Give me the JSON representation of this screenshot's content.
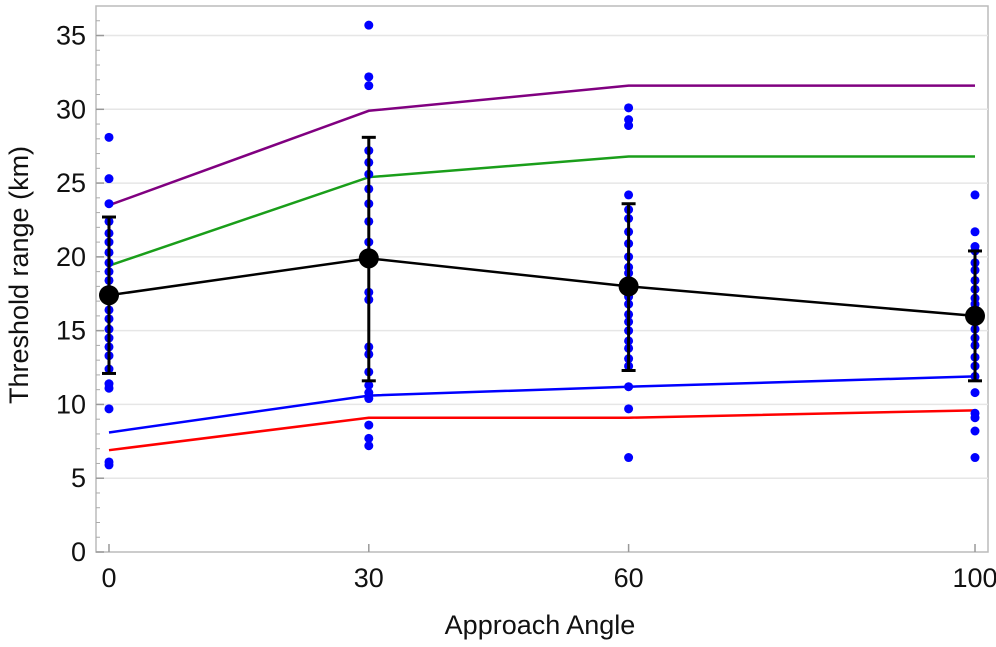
{
  "chart_data": {
    "type": "line",
    "xlabel": "Approach Angle",
    "ylabel": "Threshold range (km)",
    "x": [
      0,
      30,
      60,
      100
    ],
    "x_tick_labels": [
      "0",
      "30",
      "60",
      "100"
    ],
    "xlim": [
      -1.5,
      101.5
    ],
    "ylim": [
      0,
      37
    ],
    "y_ticks": [
      0,
      5,
      10,
      15,
      20,
      25,
      30,
      35
    ],
    "y_tick_labels": [
      "0",
      "5",
      "10",
      "15",
      "20",
      "25",
      "30",
      "35"
    ],
    "grid": "horizontal",
    "series": [
      {
        "color": "#800080",
        "values": [
          23.5,
          29.9,
          31.6,
          31.6
        ]
      },
      {
        "color": "#1a9e1a",
        "values": [
          19.4,
          25.4,
          26.8,
          26.8
        ]
      },
      {
        "color": "#0000ff",
        "values": [
          8.1,
          10.6,
          11.2,
          11.9
        ]
      },
      {
        "color": "#ff0000",
        "values": [
          6.9,
          9.1,
          9.1,
          9.6
        ]
      }
    ],
    "mean_series": {
      "color": "#000000",
      "values": [
        17.4,
        19.9,
        18.0,
        16.0
      ],
      "error_low": [
        12.1,
        11.6,
        12.3,
        11.6
      ],
      "error_high": [
        22.7,
        28.1,
        23.6,
        20.4
      ]
    },
    "scatter": {
      "color": "#0000ff",
      "points": [
        [
          0,
          28.1
        ],
        [
          0,
          25.3
        ],
        [
          0,
          23.6
        ],
        [
          0,
          22.4
        ],
        [
          0,
          21.6
        ],
        [
          0,
          21.0
        ],
        [
          0,
          20.3
        ],
        [
          0,
          19.6
        ],
        [
          0,
          19.0
        ],
        [
          0,
          18.4
        ],
        [
          0,
          17.8
        ],
        [
          0,
          17.1
        ],
        [
          0,
          16.4
        ],
        [
          0,
          15.8
        ],
        [
          0,
          15.1
        ],
        [
          0,
          14.5
        ],
        [
          0,
          13.9
        ],
        [
          0,
          13.3
        ],
        [
          0,
          12.4
        ],
        [
          0,
          11.4
        ],
        [
          0,
          11.1
        ],
        [
          0,
          9.7
        ],
        [
          0,
          6.1
        ],
        [
          0,
          5.9
        ],
        [
          30,
          35.7
        ],
        [
          30,
          32.2
        ],
        [
          30,
          31.6
        ],
        [
          30,
          27.2
        ],
        [
          30,
          26.4
        ],
        [
          30,
          25.6
        ],
        [
          30,
          24.6
        ],
        [
          30,
          23.6
        ],
        [
          30,
          22.4
        ],
        [
          30,
          21.0
        ],
        [
          30,
          20.3
        ],
        [
          30,
          19.6
        ],
        [
          30,
          17.6
        ],
        [
          30,
          17.1
        ],
        [
          30,
          13.9
        ],
        [
          30,
          13.4
        ],
        [
          30,
          12.2
        ],
        [
          30,
          11.3
        ],
        [
          30,
          10.8
        ],
        [
          30,
          10.4
        ],
        [
          30,
          8.6
        ],
        [
          30,
          7.7
        ],
        [
          30,
          7.2
        ],
        [
          60,
          30.1
        ],
        [
          60,
          29.3
        ],
        [
          60,
          28.9
        ],
        [
          60,
          24.2
        ],
        [
          60,
          23.2
        ],
        [
          60,
          22.6
        ],
        [
          60,
          21.7
        ],
        [
          60,
          20.9
        ],
        [
          60,
          20.0
        ],
        [
          60,
          19.3
        ],
        [
          60,
          18.9
        ],
        [
          60,
          18.2
        ],
        [
          60,
          17.3
        ],
        [
          60,
          16.8
        ],
        [
          60,
          16.1
        ],
        [
          60,
          15.6
        ],
        [
          60,
          15.0
        ],
        [
          60,
          14.3
        ],
        [
          60,
          13.8
        ],
        [
          60,
          13.1
        ],
        [
          60,
          12.6
        ],
        [
          60,
          11.2
        ],
        [
          60,
          9.7
        ],
        [
          60,
          6.4
        ],
        [
          100,
          24.2
        ],
        [
          100,
          21.7
        ],
        [
          100,
          20.7
        ],
        [
          100,
          20.4
        ],
        [
          100,
          19.6
        ],
        [
          100,
          19.1
        ],
        [
          100,
          18.4
        ],
        [
          100,
          17.8
        ],
        [
          100,
          17.2
        ],
        [
          100,
          16.8
        ],
        [
          100,
          16.4
        ],
        [
          100,
          15.6
        ],
        [
          100,
          15.1
        ],
        [
          100,
          14.5
        ],
        [
          100,
          14.0
        ],
        [
          100,
          13.2
        ],
        [
          100,
          12.6
        ],
        [
          100,
          11.9
        ],
        [
          100,
          10.8
        ],
        [
          100,
          9.4
        ],
        [
          100,
          9.1
        ],
        [
          100,
          8.2
        ],
        [
          100,
          6.4
        ]
      ]
    }
  }
}
